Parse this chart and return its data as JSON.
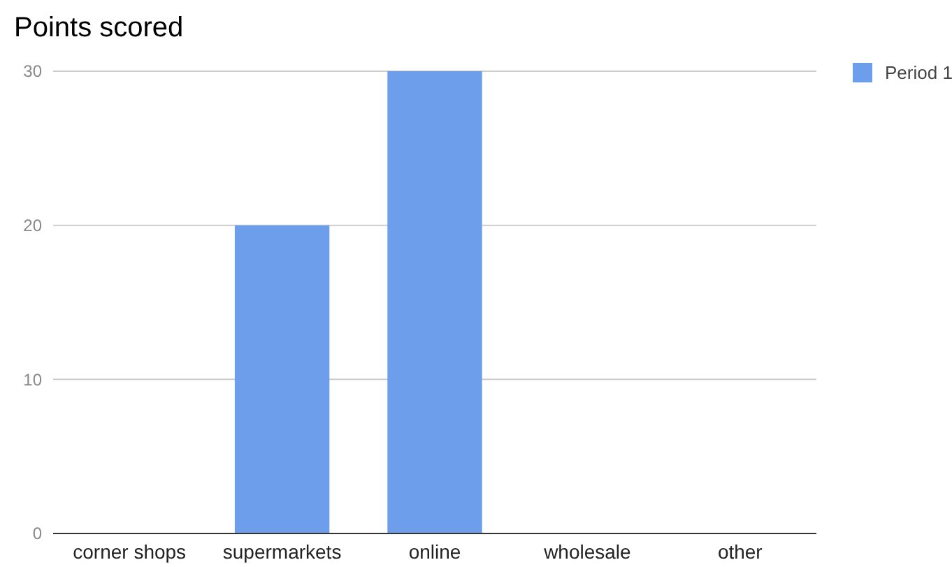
{
  "chart_data": {
    "type": "bar",
    "title": "Points scored",
    "categories": [
      "corner shops",
      "supermarkets",
      "online",
      "wholesale",
      "other"
    ],
    "series": [
      {
        "name": "Period 1",
        "color": "#6d9eeb",
        "values": [
          0,
          20,
          30,
          0,
          0
        ]
      }
    ],
    "ylim": [
      0,
      30
    ],
    "yticks": [
      0,
      10,
      20,
      30
    ],
    "grid": "y",
    "legend": "top right"
  }
}
